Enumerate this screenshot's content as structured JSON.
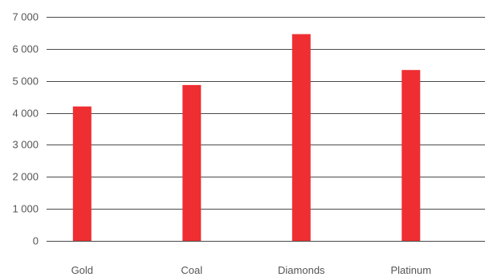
{
  "chart_data": {
    "type": "bar",
    "title": "",
    "xlabel": "",
    "ylabel": "",
    "categories": [
      "Gold",
      "Coal",
      "Diamonds",
      "Platinum"
    ],
    "values": [
      4200,
      4870,
      6460,
      5340
    ],
    "ylim": [
      0,
      7000
    ],
    "y_ticks": [
      0,
      1000,
      2000,
      3000,
      4000,
      5000,
      6000,
      7000
    ],
    "y_tick_labels": [
      "0",
      "1 000",
      "2 000",
      "3 000",
      "4 000",
      "5 000",
      "6 000",
      "7 000"
    ],
    "grid": "horizontal",
    "legend": "none",
    "bar_color": "#ee2e31",
    "grid_color": "#4a4a4a",
    "text_color": "#555555"
  }
}
